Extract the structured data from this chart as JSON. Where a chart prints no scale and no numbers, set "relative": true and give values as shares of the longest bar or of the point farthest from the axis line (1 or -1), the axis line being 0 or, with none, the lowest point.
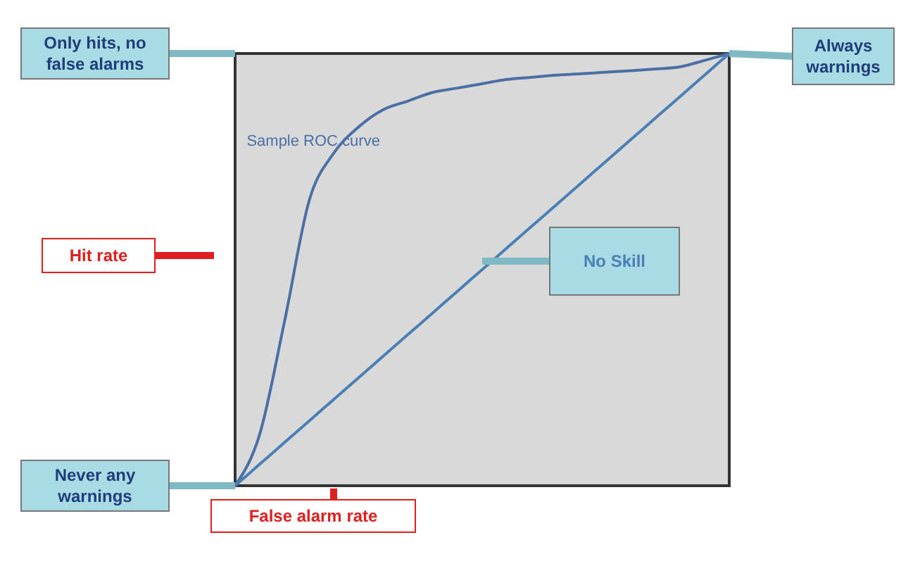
{
  "chart_data": {
    "type": "line",
    "relative": true,
    "grid": false,
    "xlabel": "False alarm rate",
    "categories": [
      null,
      null,
      null,
      null,
      null,
      null,
      null,
      null,
      null,
      null,
      null,
      null,
      null,
      null,
      null,
      null,
      null,
      null,
      null,
      null,
      null
    ],
    "series": [
      {
        "name": "Sample ROC curve",
        "color": "#4a6fa5",
        "values": [
          0,
          0.12,
          0.38,
          0.66,
          0.77,
          0.83,
          0.87,
          0.89,
          0.91,
          0.92,
          0.93,
          0.94,
          0.945,
          0.95,
          0.953,
          0.957,
          0.96,
          0.964,
          0.969,
          0.984,
          1
        ]
      },
      {
        "name": "No Skill",
        "color": "#4a7fb5",
        "values": [
          0,
          0.05,
          0.1,
          0.15,
          0.2,
          0.25,
          0.3,
          0.35,
          0.4,
          0.45,
          0.5,
          0.55,
          0.6,
          0.65,
          0.7,
          0.75,
          0.8,
          0.85,
          0.9,
          0.95,
          1
        ]
      }
    ],
    "annotations": [
      "Only hits, no false alarms",
      "Always warnings",
      "Never any warnings",
      "Hit rate"
    ]
  }
}
